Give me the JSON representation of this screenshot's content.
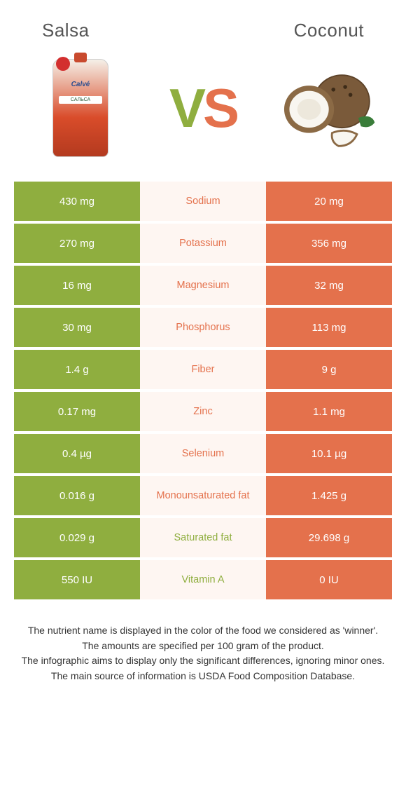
{
  "colors": {
    "salsa": "#8fae3f",
    "coconut": "#e4714c",
    "mid_bg": "#fef6f2",
    "vs_v": "#8fae3f",
    "vs_s": "#e4714c"
  },
  "header": {
    "left": "Salsa",
    "right": "Coconut"
  },
  "salsa_pkg": {
    "brand": "Calvé",
    "sub": "САЛЬСА"
  },
  "vs": {
    "v": "V",
    "s": "S"
  },
  "rows": [
    {
      "left": "430 mg",
      "label": "Sodium",
      "right": "20 mg",
      "winner": "coconut"
    },
    {
      "left": "270 mg",
      "label": "Potassium",
      "right": "356 mg",
      "winner": "coconut"
    },
    {
      "left": "16 mg",
      "label": "Magnesium",
      "right": "32 mg",
      "winner": "coconut"
    },
    {
      "left": "30 mg",
      "label": "Phosphorus",
      "right": "113 mg",
      "winner": "coconut"
    },
    {
      "left": "1.4 g",
      "label": "Fiber",
      "right": "9 g",
      "winner": "coconut"
    },
    {
      "left": "0.17 mg",
      "label": "Zinc",
      "right": "1.1 mg",
      "winner": "coconut"
    },
    {
      "left": "0.4 µg",
      "label": "Selenium",
      "right": "10.1 µg",
      "winner": "coconut"
    },
    {
      "left": "0.016 g",
      "label": "Monounsaturated fat",
      "right": "1.425 g",
      "winner": "coconut"
    },
    {
      "left": "0.029 g",
      "label": "Saturated fat",
      "right": "29.698 g",
      "winner": "salsa"
    },
    {
      "left": "550 IU",
      "label": "Vitamin A",
      "right": "0 IU",
      "winner": "salsa"
    }
  ],
  "footer": {
    "l1": "The nutrient name is displayed in the color of the food we considered as 'winner'.",
    "l2": "The amounts are specified per 100 gram of the product.",
    "l3": "The infographic aims to display only the significant differences, ignoring minor ones.",
    "l4": "The main source of information is USDA Food Composition Database."
  }
}
